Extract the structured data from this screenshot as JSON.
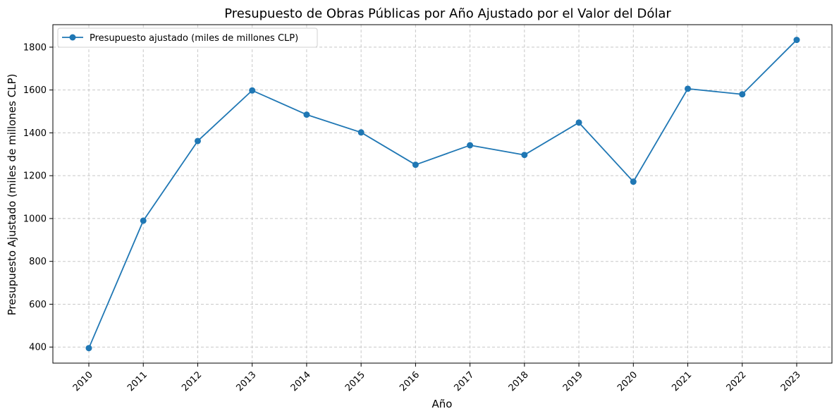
{
  "chart_data": {
    "type": "line",
    "title": "Presupuesto de Obras Públicas por Año Ajustado por el Valor del Dólar",
    "xlabel": "Año",
    "ylabel": "Presupuesto Ajustado (miles de millones CLP)",
    "categories": [
      "2010",
      "2011",
      "2012",
      "2013",
      "2014",
      "2015",
      "2016",
      "2017",
      "2018",
      "2019",
      "2020",
      "2021",
      "2022",
      "2023"
    ],
    "series": [
      {
        "name": "Presupuesto ajustado (miles de millones CLP)",
        "color": "#1f77b4",
        "values": [
          395,
          990,
          1362,
          1598,
          1485,
          1402,
          1251,
          1342,
          1297,
          1448,
          1172,
          1606,
          1580,
          1834
        ]
      }
    ],
    "ylim": [
      325,
      1905
    ],
    "yticks": [
      400,
      600,
      800,
      1000,
      1200,
      1400,
      1600,
      1800
    ],
    "grid": true,
    "legend_position": "top-left",
    "xtick_rotation": 45,
    "marker": "circle"
  }
}
